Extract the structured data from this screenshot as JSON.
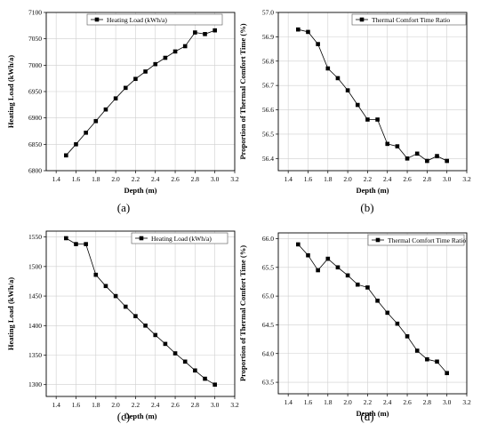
{
  "chart_data": [
    {
      "type": "line",
      "panel_label": "(a)",
      "xlabel": "Depth (m)",
      "ylabel": "Heating Load (kWh/a)",
      "xlim": [
        1.3,
        3.2
      ],
      "ylim": [
        6800,
        7100
      ],
      "xticks": [
        "1.4",
        "1.6",
        "1.8",
        "2.0",
        "2.2",
        "2.4",
        "2.6",
        "2.8",
        "3.0",
        "3.2"
      ],
      "xtick_values": [
        1.4,
        1.6,
        1.8,
        2.0,
        2.2,
        2.4,
        2.6,
        2.8,
        3.0,
        3.2
      ],
      "yticks": [
        "6800",
        "6850",
        "6900",
        "6950",
        "7000",
        "7050",
        "7100"
      ],
      "ytick_values": [
        6800,
        6850,
        6900,
        6950,
        7000,
        7050,
        7100
      ],
      "grid": true,
      "legend_position": "top-left",
      "series": [
        {
          "name": "Heating Load (kWh/a)",
          "x": [
            1.5,
            1.6,
            1.7,
            1.8,
            1.9,
            2.0,
            2.1,
            2.2,
            2.3,
            2.4,
            2.5,
            2.6,
            2.7,
            2.8,
            2.9,
            3.0
          ],
          "y": [
            6829,
            6850,
            6872,
            6894,
            6916,
            6937,
            6957,
            6974,
            6988,
            7002,
            7014,
            7026,
            7036,
            7062,
            7059,
            7066
          ]
        }
      ]
    },
    {
      "type": "line",
      "panel_label": "(b)",
      "xlabel": "Depth (m)",
      "ylabel": "Proportion of Thermal Comfort Time (%)",
      "xlim": [
        1.3,
        3.2
      ],
      "ylim": [
        56.35,
        57.0
      ],
      "xticks": [
        "1.4",
        "1.6",
        "1.8",
        "2.0",
        "2.2",
        "2.4",
        "2.6",
        "2.8",
        "3.0",
        "3.2"
      ],
      "xtick_values": [
        1.4,
        1.6,
        1.8,
        2.0,
        2.2,
        2.4,
        2.6,
        2.8,
        3.0,
        3.2
      ],
      "yticks": [
        "56.4",
        "56.5",
        "56.6",
        "56.7",
        "56.8",
        "56.9",
        "57.0"
      ],
      "ytick_values": [
        56.4,
        56.5,
        56.6,
        56.7,
        56.8,
        56.9,
        57.0
      ],
      "grid": true,
      "legend_position": "top-right",
      "series": [
        {
          "name": "Thermal Comfort Time Ratio",
          "x": [
            1.5,
            1.6,
            1.7,
            1.8,
            1.9,
            2.0,
            2.1,
            2.2,
            2.3,
            2.4,
            2.5,
            2.6,
            2.7,
            2.8,
            2.9,
            3.0
          ],
          "y": [
            56.93,
            56.92,
            56.87,
            56.77,
            56.73,
            56.68,
            56.62,
            56.56,
            56.56,
            56.46,
            56.45,
            56.4,
            56.42,
            56.39,
            56.41,
            56.39
          ]
        }
      ]
    },
    {
      "type": "line",
      "panel_label": "(c)",
      "xlabel": "Depth (m)",
      "ylabel": "Heating Load (kWh/a)",
      "xlim": [
        1.3,
        3.2
      ],
      "ylim": [
        1280,
        1560
      ],
      "xticks": [
        "1.4",
        "1.6",
        "1.8",
        "2.0",
        "2.2",
        "2.4",
        "2.6",
        "2.8",
        "3.0",
        "3.2"
      ],
      "xtick_values": [
        1.4,
        1.6,
        1.8,
        2.0,
        2.2,
        2.4,
        2.6,
        2.8,
        3.0,
        3.2
      ],
      "yticks": [
        "1300",
        "1350",
        "1400",
        "1450",
        "1500",
        "1550"
      ],
      "ytick_values": [
        1300,
        1350,
        1400,
        1450,
        1500,
        1550
      ],
      "grid": true,
      "legend_position": "top-right",
      "series": [
        {
          "name": "Heating Load (kWh/a)",
          "x": [
            1.5,
            1.6,
            1.7,
            1.8,
            1.9,
            2.0,
            2.1,
            2.2,
            2.3,
            2.4,
            2.5,
            2.6,
            2.7,
            2.8,
            2.9,
            3.0
          ],
          "y": [
            1548,
            1538,
            1538,
            1486,
            1467,
            1450,
            1432,
            1416,
            1400,
            1384,
            1369,
            1353,
            1339,
            1324,
            1310,
            1300
          ]
        }
      ]
    },
    {
      "type": "line",
      "panel_label": "(d)",
      "xlabel": "Depth (m)",
      "ylabel": "Proportion of Thermal Comfort Time (%)",
      "xlim": [
        1.3,
        3.2
      ],
      "ylim": [
        63.3,
        66.1
      ],
      "xticks": [
        "1.4",
        "1.6",
        "1.8",
        "2.0",
        "2.2",
        "2.4",
        "2.6",
        "2.8",
        "3.0",
        "3.2"
      ],
      "xtick_values": [
        1.4,
        1.6,
        1.8,
        2.0,
        2.2,
        2.4,
        2.6,
        2.8,
        3.0,
        3.2
      ],
      "yticks": [
        "63.5",
        "64.0",
        "64.5",
        "65.0",
        "65.5",
        "66.0"
      ],
      "ytick_values": [
        63.5,
        64.0,
        64.5,
        65.0,
        65.5,
        66.0
      ],
      "grid": true,
      "legend_position": "top-right",
      "series": [
        {
          "name": "Thermal Comfort Time Ratio",
          "x": [
            1.5,
            1.6,
            1.7,
            1.8,
            1.9,
            2.0,
            2.1,
            2.2,
            2.3,
            2.4,
            2.5,
            2.6,
            2.7,
            2.8,
            2.9,
            3.0
          ],
          "y": [
            65.9,
            65.71,
            65.45,
            65.65,
            65.5,
            65.36,
            65.2,
            65.15,
            64.92,
            64.71,
            64.52,
            64.3,
            64.05,
            63.9,
            63.86,
            63.66
          ]
        }
      ]
    }
  ]
}
